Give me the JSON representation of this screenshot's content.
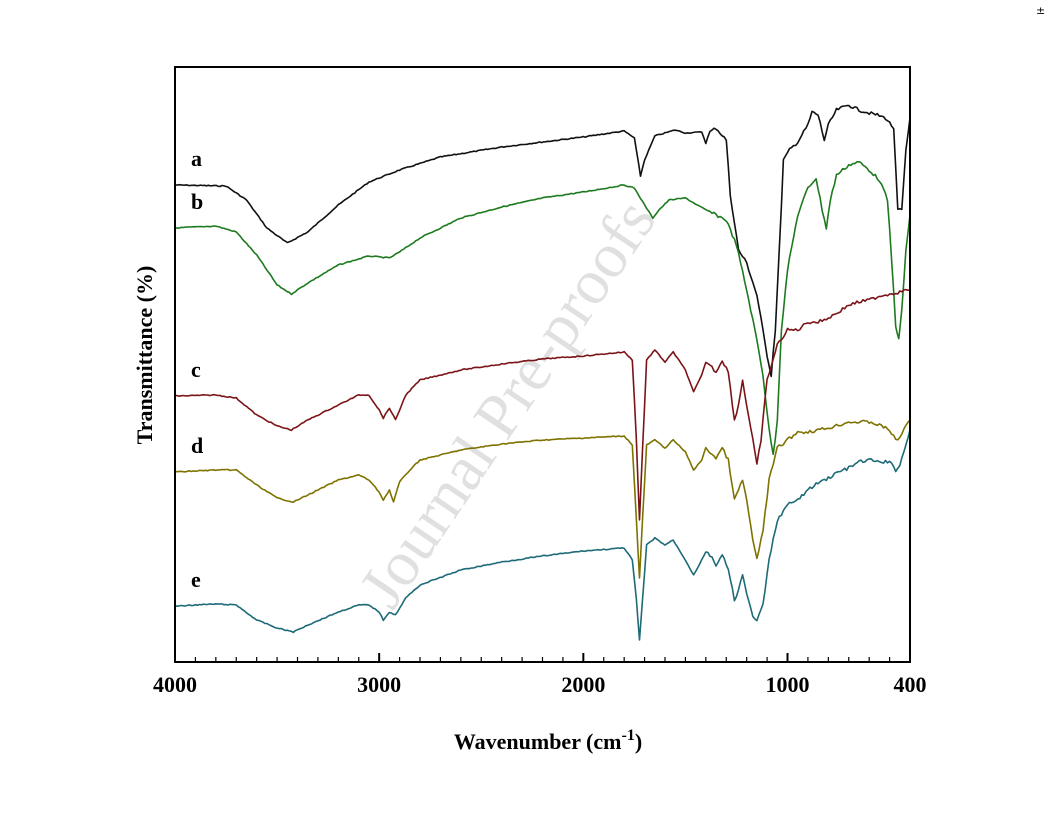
{
  "corner_mark": "±",
  "watermark": "Journal Pre-proofs",
  "chart_data": {
    "type": "line",
    "title": "",
    "xlabel": "Wavenumber (cm",
    "xlabel_superscript": "-1",
    "xlabel_suffix": ")",
    "ylabel": "Transmittance (%)",
    "xlim": [
      4000,
      400
    ],
    "x_reversed": true,
    "xticks": [
      4000,
      3000,
      2000,
      1000,
      400
    ],
    "y_ticks_shown": false,
    "grid": false,
    "legend": "none",
    "series": [
      {
        "name": "a",
        "color": "#111111",
        "points": [
          [
            4000,
            185
          ],
          [
            3750,
            186
          ],
          [
            3650,
            200
          ],
          [
            3550,
            228
          ],
          [
            3450,
            243
          ],
          [
            3350,
            232
          ],
          [
            3200,
            205
          ],
          [
            3050,
            182
          ],
          [
            2900,
            170
          ],
          [
            2700,
            157
          ],
          [
            2400,
            147
          ],
          [
            2000,
            137
          ],
          [
            1800,
            131
          ],
          [
            1750,
            138
          ],
          [
            1720,
            176
          ],
          [
            1700,
            160
          ],
          [
            1650,
            136
          ],
          [
            1550,
            130
          ],
          [
            1500,
            133
          ],
          [
            1420,
            132
          ],
          [
            1400,
            143
          ],
          [
            1380,
            132
          ],
          [
            1350,
            128
          ],
          [
            1300,
            140
          ],
          [
            1280,
            195
          ],
          [
            1240,
            250
          ],
          [
            1200,
            263
          ],
          [
            1150,
            295
          ],
          [
            1100,
            355
          ],
          [
            1080,
            375
          ],
          [
            1060,
            330
          ],
          [
            1040,
            250
          ],
          [
            1020,
            160
          ],
          [
            990,
            150
          ],
          [
            950,
            142
          ],
          [
            900,
            125
          ],
          [
            880,
            112
          ],
          [
            850,
            115
          ],
          [
            820,
            140
          ],
          [
            800,
            125
          ],
          [
            760,
            110
          ],
          [
            700,
            105
          ],
          [
            650,
            110
          ],
          [
            600,
            113
          ],
          [
            560,
            115
          ],
          [
            520,
            118
          ],
          [
            480,
            128
          ],
          [
            460,
            210
          ],
          [
            440,
            210
          ],
          [
            420,
            150
          ],
          [
            400,
            118
          ]
        ]
      },
      {
        "name": "b",
        "color": "#1e7a1e",
        "points": [
          [
            4000,
            228
          ],
          [
            3800,
            226
          ],
          [
            3700,
            232
          ],
          [
            3600,
            255
          ],
          [
            3500,
            285
          ],
          [
            3430,
            294
          ],
          [
            3350,
            283
          ],
          [
            3200,
            265
          ],
          [
            3050,
            256
          ],
          [
            2950,
            258
          ],
          [
            2900,
            252
          ],
          [
            2800,
            238
          ],
          [
            2600,
            218
          ],
          [
            2400,
            207
          ],
          [
            2200,
            198
          ],
          [
            2000,
            192
          ],
          [
            1800,
            185
          ],
          [
            1750,
            188
          ],
          [
            1700,
            205
          ],
          [
            1660,
            218
          ],
          [
            1630,
            210
          ],
          [
            1580,
            200
          ],
          [
            1500,
            198
          ],
          [
            1400,
            210
          ],
          [
            1300,
            220
          ],
          [
            1250,
            245
          ],
          [
            1200,
            290
          ],
          [
            1150,
            340
          ],
          [
            1120,
            375
          ],
          [
            1090,
            430
          ],
          [
            1070,
            455
          ],
          [
            1050,
            420
          ],
          [
            1030,
            330
          ],
          [
            1000,
            270
          ],
          [
            950,
            215
          ],
          [
            900,
            188
          ],
          [
            860,
            178
          ],
          [
            830,
            210
          ],
          [
            810,
            228
          ],
          [
            790,
            200
          ],
          [
            760,
            175
          ],
          [
            700,
            165
          ],
          [
            650,
            162
          ],
          [
            600,
            170
          ],
          [
            550,
            180
          ],
          [
            510,
            200
          ],
          [
            490,
            260
          ],
          [
            470,
            325
          ],
          [
            455,
            340
          ],
          [
            440,
            310
          ],
          [
            420,
            250
          ],
          [
            400,
            215
          ]
        ]
      },
      {
        "name": "c",
        "color": "#7b1418",
        "points": [
          [
            4000,
            396
          ],
          [
            3800,
            395
          ],
          [
            3700,
            398
          ],
          [
            3600,
            415
          ],
          [
            3500,
            426
          ],
          [
            3430,
            430
          ],
          [
            3350,
            420
          ],
          [
            3200,
            405
          ],
          [
            3100,
            395
          ],
          [
            3050,
            395
          ],
          [
            3000,
            410
          ],
          [
            2980,
            418
          ],
          [
            2950,
            408
          ],
          [
            2920,
            420
          ],
          [
            2870,
            395
          ],
          [
            2800,
            380
          ],
          [
            2600,
            370
          ],
          [
            2400,
            364
          ],
          [
            2200,
            359
          ],
          [
            2000,
            356
          ],
          [
            1800,
            352
          ],
          [
            1760,
            360
          ],
          [
            1740,
            440
          ],
          [
            1725,
            520
          ],
          [
            1710,
            450
          ],
          [
            1690,
            360
          ],
          [
            1650,
            350
          ],
          [
            1600,
            362
          ],
          [
            1560,
            352
          ],
          [
            1500,
            370
          ],
          [
            1460,
            392
          ],
          [
            1420,
            375
          ],
          [
            1400,
            362
          ],
          [
            1380,
            365
          ],
          [
            1350,
            372
          ],
          [
            1320,
            360
          ],
          [
            1290,
            372
          ],
          [
            1260,
            420
          ],
          [
            1240,
            405
          ],
          [
            1220,
            380
          ],
          [
            1200,
            405
          ],
          [
            1170,
            440
          ],
          [
            1150,
            465
          ],
          [
            1130,
            440
          ],
          [
            1100,
            380
          ],
          [
            1050,
            345
          ],
          [
            1000,
            330
          ],
          [
            950,
            330
          ],
          [
            900,
            322
          ],
          [
            850,
            322
          ],
          [
            800,
            318
          ],
          [
            750,
            312
          ],
          [
            700,
            305
          ],
          [
            650,
            302
          ],
          [
            600,
            300
          ],
          [
            550,
            296
          ],
          [
            500,
            294
          ],
          [
            450,
            292
          ],
          [
            420,
            290
          ],
          [
            400,
            290
          ]
        ]
      },
      {
        "name": "d",
        "color": "#7e7300",
        "points": [
          [
            4000,
            472
          ],
          [
            3800,
            470
          ],
          [
            3700,
            470
          ],
          [
            3600,
            485
          ],
          [
            3500,
            498
          ],
          [
            3420,
            502
          ],
          [
            3350,
            495
          ],
          [
            3200,
            480
          ],
          [
            3100,
            475
          ],
          [
            3050,
            480
          ],
          [
            3000,
            492
          ],
          [
            2980,
            500
          ],
          [
            2950,
            490
          ],
          [
            2930,
            502
          ],
          [
            2900,
            482
          ],
          [
            2850,
            470
          ],
          [
            2800,
            460
          ],
          [
            2600,
            450
          ],
          [
            2400,
            444
          ],
          [
            2200,
            440
          ],
          [
            2000,
            438
          ],
          [
            1800,
            436
          ],
          [
            1760,
            445
          ],
          [
            1740,
            520
          ],
          [
            1725,
            578
          ],
          [
            1710,
            520
          ],
          [
            1690,
            445
          ],
          [
            1650,
            440
          ],
          [
            1600,
            448
          ],
          [
            1560,
            440
          ],
          [
            1500,
            452
          ],
          [
            1460,
            470
          ],
          [
            1420,
            460
          ],
          [
            1400,
            448
          ],
          [
            1380,
            452
          ],
          [
            1350,
            458
          ],
          [
            1320,
            448
          ],
          [
            1290,
            460
          ],
          [
            1260,
            500
          ],
          [
            1240,
            490
          ],
          [
            1220,
            480
          ],
          [
            1200,
            500
          ],
          [
            1170,
            540
          ],
          [
            1150,
            560
          ],
          [
            1120,
            530
          ],
          [
            1090,
            480
          ],
          [
            1050,
            448
          ],
          [
            1000,
            440
          ],
          [
            950,
            432
          ],
          [
            900,
            432
          ],
          [
            850,
            430
          ],
          [
            800,
            428
          ],
          [
            750,
            425
          ],
          [
            700,
            422
          ],
          [
            650,
            422
          ],
          [
            600,
            422
          ],
          [
            550,
            425
          ],
          [
            500,
            430
          ],
          [
            470,
            440
          ],
          [
            450,
            438
          ],
          [
            420,
            425
          ],
          [
            400,
            420
          ]
        ]
      },
      {
        "name": "e",
        "color": "#1e6b78",
        "points": [
          [
            4000,
            606
          ],
          [
            3800,
            604
          ],
          [
            3700,
            605
          ],
          [
            3600,
            620
          ],
          [
            3500,
            628
          ],
          [
            3420,
            632
          ],
          [
            3350,
            625
          ],
          [
            3200,
            612
          ],
          [
            3100,
            605
          ],
          [
            3050,
            605
          ],
          [
            3000,
            612
          ],
          [
            2980,
            620
          ],
          [
            2950,
            612
          ],
          [
            2920,
            615
          ],
          [
            2870,
            598
          ],
          [
            2800,
            585
          ],
          [
            2600,
            570
          ],
          [
            2400,
            562
          ],
          [
            2200,
            556
          ],
          [
            2000,
            551
          ],
          [
            1800,
            548
          ],
          [
            1760,
            560
          ],
          [
            1740,
            600
          ],
          [
            1725,
            640
          ],
          [
            1710,
            600
          ],
          [
            1690,
            545
          ],
          [
            1650,
            538
          ],
          [
            1600,
            545
          ],
          [
            1560,
            540
          ],
          [
            1500,
            560
          ],
          [
            1460,
            575
          ],
          [
            1420,
            560
          ],
          [
            1400,
            552
          ],
          [
            1380,
            555
          ],
          [
            1350,
            565
          ],
          [
            1320,
            555
          ],
          [
            1290,
            570
          ],
          [
            1260,
            600
          ],
          [
            1240,
            590
          ],
          [
            1220,
            575
          ],
          [
            1200,
            595
          ],
          [
            1170,
            615
          ],
          [
            1150,
            622
          ],
          [
            1120,
            605
          ],
          [
            1090,
            560
          ],
          [
            1050,
            520
          ],
          [
            1000,
            505
          ],
          [
            950,
            500
          ],
          [
            900,
            490
          ],
          [
            850,
            483
          ],
          [
            800,
            478
          ],
          [
            750,
            472
          ],
          [
            700,
            468
          ],
          [
            650,
            462
          ],
          [
            600,
            460
          ],
          [
            550,
            462
          ],
          [
            500,
            462
          ],
          [
            470,
            470
          ],
          [
            450,
            465
          ],
          [
            420,
            445
          ],
          [
            400,
            430
          ]
        ]
      }
    ]
  }
}
